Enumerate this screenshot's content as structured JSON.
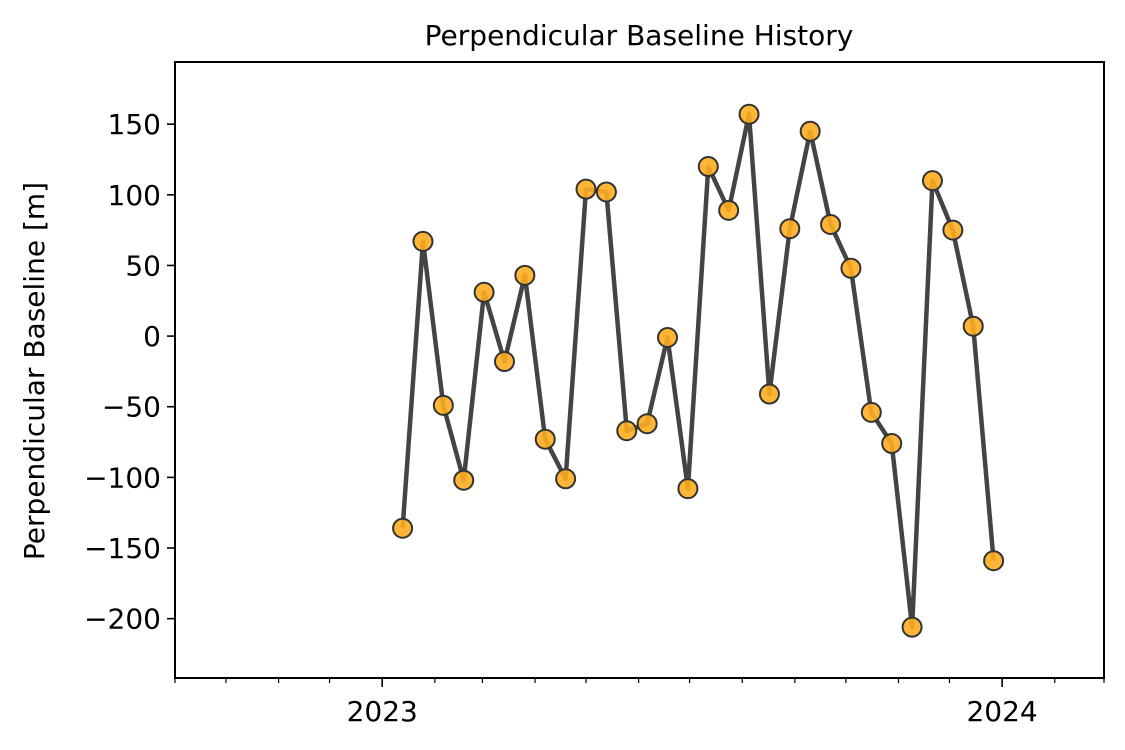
{
  "chart_data": {
    "type": "line",
    "title": "Perpendicular Baseline History",
    "xlabel": "",
    "ylabel": "Perpendicular Baseline [m]",
    "x_type": "date",
    "xlim": [
      "2022-09-01",
      "2024-03-01"
    ],
    "ylim": [
      -242,
      194
    ],
    "yticks": [
      150,
      100,
      50,
      0,
      -50,
      -100,
      -150,
      -200
    ],
    "ytick_labels": [
      "150",
      "100",
      "50",
      "0",
      "−50",
      "−100",
      "−150",
      "−200"
    ],
    "xticks": [
      "2023-01-01",
      "2024-01-01"
    ],
    "xtick_labels": [
      "2023",
      "2024"
    ],
    "x_minor_ticks": "monthly",
    "grid": false,
    "legend": "none",
    "line_color": "#444444",
    "marker_color": "#ffad1f",
    "marker_edge_color": "#333333",
    "series": [
      {
        "x": [
          "2023-01-13",
          "2023-01-25",
          "2023-02-06",
          "2023-02-18",
          "2023-03-02",
          "2023-03-14",
          "2023-03-26",
          "2023-04-07",
          "2023-04-19",
          "2023-05-01",
          "2023-05-13",
          "2023-05-25",
          "2023-06-06",
          "2023-06-18",
          "2023-06-30",
          "2023-07-12",
          "2023-07-24",
          "2023-08-05",
          "2023-08-17",
          "2023-08-29",
          "2023-09-10",
          "2023-09-22",
          "2023-10-04",
          "2023-10-16",
          "2023-10-28",
          "2023-11-09",
          "2023-11-21",
          "2023-12-03",
          "2023-12-15",
          "2023-12-27"
        ],
        "values": [
          -136,
          67,
          -49,
          -102,
          31,
          -18,
          43,
          -73,
          -101,
          104,
          102,
          -67,
          -62,
          -1,
          -108,
          120,
          89,
          157,
          -41,
          76,
          145,
          79,
          48,
          -54,
          -76,
          -206,
          110,
          75,
          7,
          -159
        ]
      }
    ]
  }
}
